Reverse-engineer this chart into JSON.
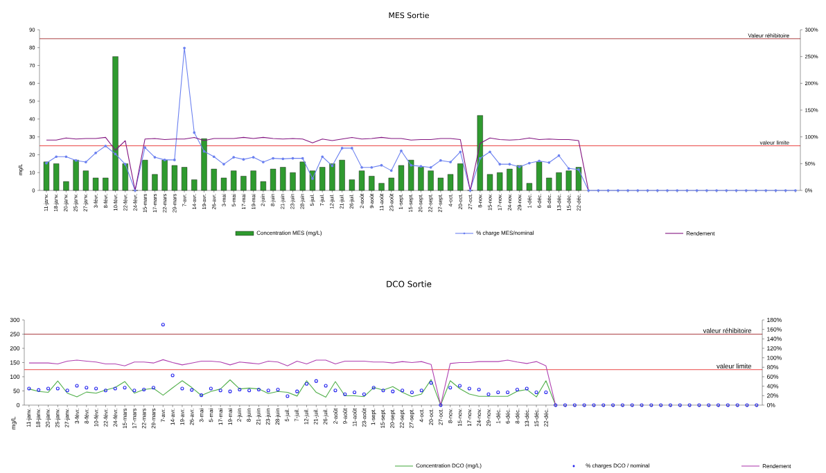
{
  "chart_data": [
    {
      "type": "bar",
      "title": "MES Sortie",
      "ylabel": "mg/L",
      "categories": [
        "11-janv.",
        "18-janv.",
        "20-janv.",
        "25-janv.",
        "27-janv.",
        "3-févr.",
        "8-févr.",
        "10-févr.",
        "22-févr.",
        "24-févr.",
        "15-mars",
        "17-mars",
        "22-mars",
        "29-mars",
        "7-avr.",
        "14-avr.",
        "19-avr.",
        "26-avr.",
        "3-mai",
        "5-mai",
        "17-mai",
        "19-mai",
        "2-juin",
        "8-juin",
        "21-juin",
        "23-juin",
        "28-juin",
        "5-juil.",
        "7-juil.",
        "12-juil.",
        "21-juil.",
        "26-juil.",
        "2-août",
        "9-août",
        "11-août",
        "23-août",
        "1-sept.",
        "15-sept.",
        "20-sept.",
        "22-sept.",
        "27-sept.",
        "4-oct.",
        "20-oct.",
        "27-oct.",
        "8-nov.",
        "15-nov.",
        "17-nov.",
        "24-nov.",
        "29-nov.",
        "1-déc.",
        "6-déc.",
        "8-déc.",
        "13-déc.",
        "15-déc.",
        "22-déc.",
        null,
        null,
        null,
        null,
        null,
        null,
        null,
        null,
        null,
        null,
        null,
        null,
        null,
        null,
        null,
        null,
        null,
        null,
        null,
        null,
        null,
        null
      ],
      "series": [
        {
          "name": "Concentration MES (mg/L)",
          "color": "#2f9a2f",
          "values": [
            16,
            15,
            5,
            17,
            11,
            7,
            7,
            75,
            15,
            0,
            17,
            9,
            17,
            14,
            13,
            6,
            29,
            12,
            7,
            11,
            8,
            11,
            5,
            12,
            13,
            10,
            16,
            11,
            13,
            15,
            17,
            6,
            11,
            8,
            4,
            7,
            14,
            17,
            13,
            11,
            7,
            9,
            15,
            0,
            42,
            9,
            10,
            12,
            14,
            4,
            16,
            7,
            10,
            11,
            13,
            null,
            null,
            null,
            null,
            null,
            null,
            null,
            null,
            null,
            null,
            null,
            null,
            null,
            null,
            null,
            null,
            null,
            null,
            null,
            null,
            null,
            null
          ]
        },
        {
          "name": "% charge MES/nominal",
          "type": "line",
          "axis": "y2",
          "marker": "circle",
          "color": "#6b80f0",
          "values": [
            51,
            63,
            63,
            56,
            53,
            70,
            83,
            68,
            49,
            0,
            80,
            62,
            57,
            57,
            266,
            108,
            73,
            63,
            49,
            62,
            58,
            62,
            53,
            60,
            59,
            60,
            60,
            22,
            63,
            46,
            79,
            79,
            43,
            43,
            47,
            37,
            74,
            47,
            45,
            43,
            56,
            53,
            72,
            0,
            60,
            72,
            49,
            49,
            44,
            51,
            55,
            52,
            65,
            41,
            39,
            0,
            0,
            0,
            0,
            0,
            0,
            0,
            0,
            0,
            0,
            0,
            0,
            0,
            0,
            0,
            0,
            0,
            0,
            0,
            0,
            0,
            0
          ]
        },
        {
          "name": "Rendement",
          "type": "line",
          "axis": "y2",
          "marker": "none",
          "color": "#82127f",
          "values": [
            94,
            94,
            98,
            96,
            97,
            97,
            99,
            75,
            93,
            0,
            96,
            97,
            95,
            96,
            96,
            99,
            93,
            97,
            97,
            97,
            99,
            97,
            99,
            97,
            96,
            97,
            96,
            89,
            96,
            93,
            96,
            99,
            96,
            97,
            99,
            97,
            97,
            94,
            95,
            95,
            97,
            97,
            95,
            0,
            88,
            98,
            95,
            94,
            95,
            98,
            95,
            96,
            95,
            95,
            93,
            0,
            null,
            null,
            null,
            null,
            null,
            null,
            null,
            null,
            null,
            null,
            null,
            null,
            null,
            null,
            null,
            null,
            null,
            null,
            null,
            null,
            null
          ]
        }
      ],
      "ylim": [
        0,
        90
      ],
      "yticks": [
        0,
        10,
        20,
        30,
        40,
        50,
        60,
        70,
        80,
        90
      ],
      "y2lim": [
        0,
        300
      ],
      "y2ticks": [
        {
          "value": 0,
          "label": "0%"
        },
        {
          "value": 50,
          "label": "50%"
        },
        {
          "value": 100,
          "label": "100%"
        },
        {
          "value": 150,
          "label": "150%"
        },
        {
          "value": 200,
          "label": "200%"
        },
        {
          "value": 250,
          "label": "250%"
        },
        {
          "value": 300,
          "label": "300%"
        }
      ],
      "ref_lines": [
        {
          "axis": "y",
          "value": 85,
          "label": "Valeur réhibitoire",
          "color": "#a0282d"
        },
        {
          "axis": "y",
          "value": 25,
          "label": "valeur limite",
          "color": "#e8312f"
        }
      ],
      "legend": "bottom"
    },
    {
      "type": "line",
      "title": "DCO Sortie",
      "ylabel": "mg/L",
      "categories": [
        "11-janv.",
        "18-janv.",
        "20-janv.",
        "25-janv.",
        "27-janv.",
        "3-févr.",
        "8-févr.",
        "10-févr.",
        "22-févr.",
        "24-févr.",
        "15-mars",
        "17-mars",
        "22-mars",
        "29-mars",
        "7-avr.",
        "14-avr.",
        "19-avr.",
        "26-avr.",
        "3-mai",
        "5-mai",
        "17-mai",
        "19-mai",
        "2-juin",
        "8-juin",
        "21-juin",
        "23-juin",
        "28-juin",
        "5-juil.",
        "7-juil.",
        "12-juil.",
        "21-juil.",
        "26-juil.",
        "2-août",
        "9-août",
        "11-août",
        "23-août",
        "1-sept.",
        "15-sept.",
        "20-sept.",
        "22-sept.",
        "27-sept.",
        "4-oct.",
        "20-oct.",
        "27-oct.",
        "8-nov.",
        "15-nov.",
        "17-nov.",
        "24-nov.",
        "29-nov.",
        "1-déc.",
        "6-déc.",
        "8-déc.",
        "13-déc.",
        "15-déc.",
        "22-déc.",
        null,
        null,
        null,
        null,
        null,
        null,
        null,
        null,
        null,
        null,
        null,
        null,
        null,
        null,
        null,
        null,
        null,
        null,
        null,
        null,
        null,
        null
      ],
      "series": [
        {
          "name": "Concentration DCO (mg/L)",
          "marker": "none",
          "color": "#4fae48",
          "values": [
            57,
            48,
            45,
            85,
            42,
            29,
            46,
            42,
            53,
            62,
            83,
            42,
            55,
            59,
            35,
            61,
            86,
            62,
            34,
            48,
            57,
            89,
            57,
            60,
            57,
            41,
            48,
            45,
            32,
            86,
            45,
            28,
            83,
            33,
            33,
            30,
            62,
            53,
            65,
            45,
            30,
            39,
            90,
            0,
            86,
            58,
            39,
            31,
            31,
            31,
            31,
            49,
            55,
            29,
            86,
            0,
            null,
            null,
            null,
            null,
            null,
            null,
            null,
            null,
            null,
            null,
            null,
            null,
            null,
            null,
            null,
            null,
            null,
            null,
            null,
            null,
            null
          ]
        },
        {
          "name": "% charges DCO / nominal",
          "type": "scatter",
          "axis": "y2",
          "marker": "circle",
          "color": "#2222ee",
          "values": [
            35,
            32,
            35,
            35,
            31,
            41,
            37,
            35,
            31,
            35,
            37,
            31,
            33,
            37,
            170,
            63,
            35,
            32,
            21,
            35,
            31,
            29,
            33,
            31,
            33,
            31,
            33,
            19,
            29,
            45,
            51,
            41,
            31,
            23,
            27,
            23,
            37,
            31,
            29,
            31,
            27,
            31,
            47,
            0,
            37,
            41,
            35,
            33,
            23,
            27,
            27,
            33,
            35,
            27,
            27,
            0,
            0,
            0,
            0,
            0,
            0,
            0,
            0,
            0,
            0,
            0,
            0,
            0,
            0,
            0,
            0,
            0,
            0,
            0,
            0,
            0,
            0
          ]
        },
        {
          "name": "Rendement",
          "type": "line",
          "axis": "y2",
          "marker": "none",
          "color": "#b040b0",
          "values": [
            89,
            89,
            89,
            87,
            93,
            95,
            93,
            91,
            87,
            87,
            83,
            91,
            91,
            89,
            96,
            90,
            85,
            89,
            93,
            93,
            91,
            85,
            91,
            89,
            87,
            93,
            91,
            83,
            93,
            87,
            95,
            95,
            87,
            93,
            93,
            93,
            91,
            91,
            89,
            92,
            90,
            92,
            86,
            0,
            88,
            90,
            90,
            92,
            92,
            92,
            95,
            91,
            88,
            92,
            83,
            0,
            null,
            null,
            null,
            null,
            null,
            null,
            null,
            null,
            null,
            null,
            null,
            null,
            null,
            null,
            null,
            null,
            null,
            null,
            null,
            null,
            null
          ]
        }
      ],
      "ylim": [
        0,
        300
      ],
      "yticks": [
        0,
        50,
        100,
        150,
        200,
        250,
        300
      ],
      "y2lim": [
        0,
        180
      ],
      "y2ticks": [
        {
          "value": 0,
          "label": "0%"
        },
        {
          "value": 20,
          "label": "20%"
        },
        {
          "value": 40,
          "label": "40%"
        },
        {
          "value": 60,
          "label": "60%"
        },
        {
          "value": 80,
          "label": "80%"
        },
        {
          "value": 100,
          "label": "100%"
        },
        {
          "value": 120,
          "label": "120%"
        },
        {
          "value": 140,
          "label": "140%"
        },
        {
          "value": 160,
          "label": "160%"
        },
        {
          "value": 180,
          "label": "180%"
        }
      ],
      "ref_lines": [
        {
          "axis": "y",
          "value": 250,
          "label": "valeur réhibitoire",
          "color": "#a0282d"
        },
        {
          "axis": "y",
          "value": 125,
          "label": "valeur limite",
          "color": "#e8312f"
        }
      ],
      "legend": "bottom"
    }
  ]
}
